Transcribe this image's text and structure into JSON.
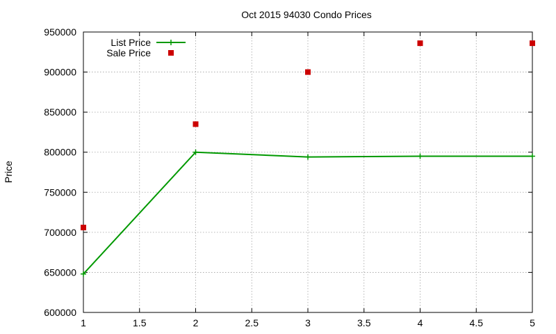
{
  "chart_data": {
    "type": "line",
    "title": "Oct 2015 94030 Condo Prices",
    "xlabel": "",
    "ylabel": "Price",
    "xlim": [
      1,
      5
    ],
    "ylim": [
      600000,
      950000
    ],
    "xticks": [
      1,
      1.5,
      2,
      2.5,
      3,
      3.5,
      4,
      4.5,
      5
    ],
    "xtick_labels": [
      "1",
      "1.5",
      "2",
      "2.5",
      "3",
      "3.5",
      "4",
      "4.5",
      "5"
    ],
    "yticks": [
      600000,
      650000,
      700000,
      750000,
      800000,
      850000,
      900000,
      950000
    ],
    "ytick_labels": [
      "600000",
      "650000",
      "700000",
      "750000",
      "800000",
      "850000",
      "900000",
      "950000"
    ],
    "grid": true,
    "legend_position": "top-left",
    "series": [
      {
        "name": "List Price",
        "kind": "line",
        "color": "#009900",
        "marker": "plus",
        "x": [
          1,
          2,
          3,
          4,
          5
        ],
        "y": [
          648000,
          800000,
          794000,
          795000,
          795000
        ]
      },
      {
        "name": "Sale Price",
        "kind": "scatter",
        "color": "#cc0000",
        "marker": "square",
        "x": [
          1,
          2,
          3,
          4,
          5
        ],
        "y": [
          706000,
          835000,
          900000,
          936000,
          936000
        ]
      }
    ]
  }
}
